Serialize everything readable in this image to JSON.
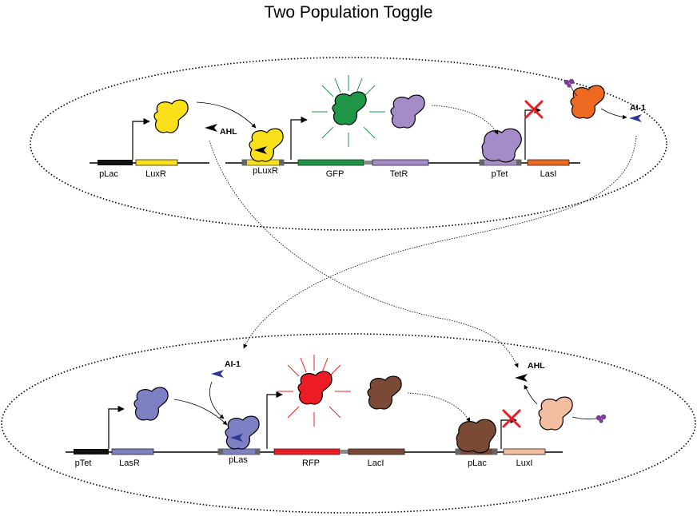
{
  "title": "Two Population Toggle",
  "colors": {
    "yellow": "#f9e01a",
    "green": "#1e9646",
    "lavender": "#a58cc8",
    "orange": "#ee6a22",
    "periwinkle": "#7d80c2",
    "red": "#ed1c24",
    "brown": "#7b4a37",
    "peach": "#f3bea0",
    "navy": "#2b3896",
    "purple": "#7b3f96"
  },
  "top_cell": {
    "parts": {
      "plac": "pLac",
      "luxr": "LuxR",
      "pluxr": "pLuxR",
      "gfp": "GFP",
      "tetr": "TetR",
      "ptet": "pTet",
      "lasi": "LasI"
    },
    "signals": {
      "ahl": "AHL",
      "ai1": "AI-1"
    }
  },
  "bottom_cell": {
    "parts": {
      "ptet": "pTet",
      "lasr": "LasR",
      "plas": "pLas",
      "rfp": "RFP",
      "laci": "LacI",
      "plac": "pLac",
      "luxi": "LuxI"
    },
    "signals": {
      "ai1": "AI-1",
      "ahl": "AHL"
    }
  }
}
